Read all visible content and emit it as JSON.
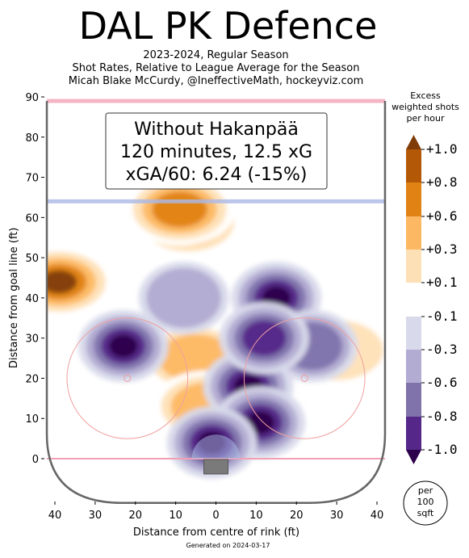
{
  "title": "DAL PK Defence",
  "subtitle": [
    "2023-2024, Regular Season",
    "Shot Rates, Relative to League Average for the Season",
    "Micah Blake McCurdy, @IneffectiveMath, hockeyviz.com"
  ],
  "generated": "Generated on 2024-03-17",
  "chart_data": {
    "type": "heatmap",
    "xlabel": "Distance from centre of rink (ft)",
    "ylabel": "Distance from goal line (ft)",
    "xlim": [
      -42,
      42
    ],
    "ylim": [
      -11,
      90
    ],
    "x_ticks": [
      "40",
      "30",
      "20",
      "10",
      "0",
      "10",
      "20",
      "30",
      "40"
    ],
    "x_tick_values": [
      -40,
      -30,
      -20,
      -10,
      0,
      10,
      20,
      30,
      40
    ],
    "y_ticks": [
      "0",
      "10",
      "20",
      "30",
      "40",
      "50",
      "60",
      "70",
      "80",
      "90"
    ],
    "y_tick_values": [
      0,
      10,
      20,
      30,
      40,
      50,
      60,
      70,
      80,
      90
    ],
    "annotation": [
      "Without Hakanpää",
      "120 minutes, 12.5 xG",
      "xGA/60: 6.24 (-15%)"
    ],
    "colorbar": {
      "title": [
        "Excess",
        "weighted shots",
        "per hour"
      ],
      "labels": [
        "+1.0",
        "+0.8",
        "+0.6",
        "+0.3",
        "+0.1",
        "-0.1",
        "-0.3",
        "-0.6",
        "-0.8",
        "-1.0"
      ],
      "values": [
        1.0,
        0.8,
        0.6,
        0.3,
        0.1,
        -0.1,
        -0.3,
        -0.6,
        -0.8,
        -1.0
      ],
      "colors": [
        "#7f3b08",
        "#b35806",
        "#e08214",
        "#fdb863",
        "#fee0b6",
        "#ffffff",
        "#d8daeb",
        "#b2abd2",
        "#8073ac",
        "#542788",
        "#2d004b"
      ],
      "unit": [
        "per",
        "100",
        "sqft"
      ]
    },
    "hotspots": [
      {
        "x": -7,
        "y": 59,
        "value": 1.0
      },
      {
        "x": -9,
        "y": 62,
        "value": 0.8
      },
      {
        "x": -39,
        "y": 44,
        "value": 1.0
      },
      {
        "x": -5,
        "y": 25,
        "value": 0.6
      },
      {
        "x": -2,
        "y": 13,
        "value": 0.6
      },
      {
        "x": 30,
        "y": 27,
        "value": 0.3
      },
      {
        "x": -23,
        "y": 28,
        "value": -1.0
      },
      {
        "x": 15,
        "y": 40,
        "value": -1.0
      },
      {
        "x": 8,
        "y": 18,
        "value": -1.0
      },
      {
        "x": 11,
        "y": 9,
        "value": -1.0
      },
      {
        "x": -1,
        "y": 4,
        "value": -1.0
      },
      {
        "x": 24,
        "y": 28,
        "value": -0.6
      },
      {
        "x": 12,
        "y": 30,
        "value": -0.8
      },
      {
        "x": -8,
        "y": 40,
        "value": -0.3
      }
    ],
    "grid": false
  }
}
